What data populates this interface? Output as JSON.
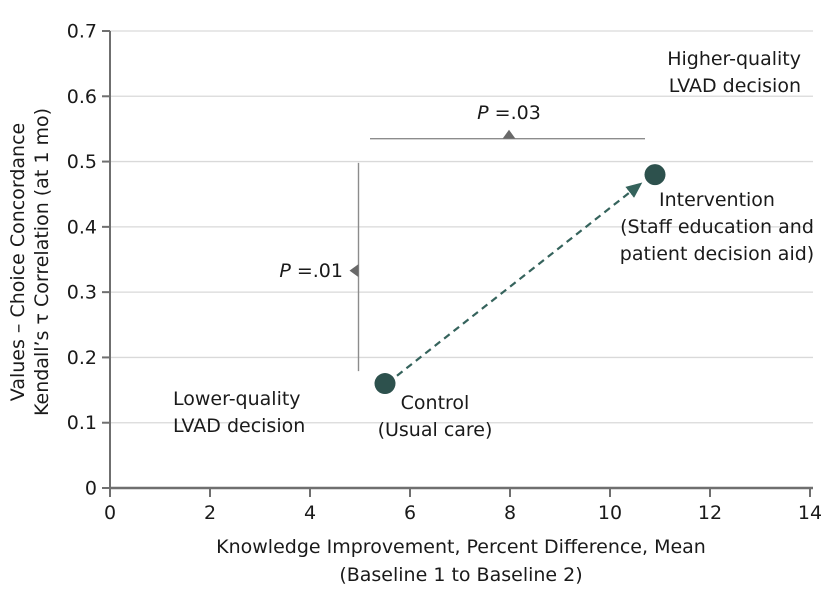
{
  "chart_data": {
    "type": "scatter",
    "title": "",
    "xlabel_lines": [
      "Knowledge Improvement, Percent Difference, Mean",
      "(Baseline 1 to Baseline 2)"
    ],
    "ylabel_lines": [
      "Values – Choice Concordance",
      "Kendall’s τ Correlation (at 1 mo)"
    ],
    "xlim": [
      0,
      14
    ],
    "ylim": [
      0,
      0.7
    ],
    "xticks": [
      0,
      2,
      4,
      6,
      8,
      10,
      12,
      14
    ],
    "xtick_labels": [
      "0",
      "2",
      "4",
      "6",
      "8",
      "10",
      "12",
      "14"
    ],
    "yticks": [
      0,
      0.1,
      0.2,
      0.3,
      0.4,
      0.5,
      0.6,
      0.7
    ],
    "ytick_labels": [
      "0",
      "0.1",
      "0.2",
      "0.3",
      "0.4",
      "0.5",
      "0.6",
      "0.7"
    ],
    "grid": "horizontal",
    "legend": "none",
    "points": [
      {
        "id": "control",
        "x": 5.5,
        "y": 0.16,
        "label_lines": [
          "Control",
          "(Usual care)"
        ]
      },
      {
        "id": "intervention",
        "x": 10.9,
        "y": 0.48,
        "label_lines": [
          "Intervention",
          "(Staff education and",
          "patient decision aid)"
        ]
      }
    ],
    "arrow": {
      "from_x": 5.74,
      "from_y": 0.172,
      "to_x": 10.63,
      "to_y": 0.467,
      "style": "dashed"
    },
    "p_annotations": [
      {
        "id": "p-top",
        "label_italic": "P",
        "label_rest": " =.03",
        "orientation": "horizontal",
        "y": 0.535,
        "x_from": 5.2,
        "x_to": 10.7,
        "marker_x": 7.98
      },
      {
        "id": "p-left",
        "label_italic": "P",
        "label_rest": " =.01",
        "orientation": "vertical",
        "x": 4.97,
        "y_from": 0.179,
        "y_to": 0.498,
        "marker_y": 0.333
      }
    ],
    "quadrant_labels": [
      {
        "id": "higher",
        "lines": [
          "Higher-quality",
          "LVAD decision"
        ],
        "align": "right"
      },
      {
        "id": "lower",
        "lines": [
          "Lower-quality",
          "LVAD decision"
        ],
        "align": "left"
      }
    ],
    "colors": {
      "point": "#2d514d",
      "arrow": "#35635c",
      "gridline": "#d9d9d9",
      "axis": "#6f6f6f",
      "annotation_line": "#8c8c8c",
      "annotation_marker": "#696969",
      "text": "#1a1a1a"
    }
  }
}
